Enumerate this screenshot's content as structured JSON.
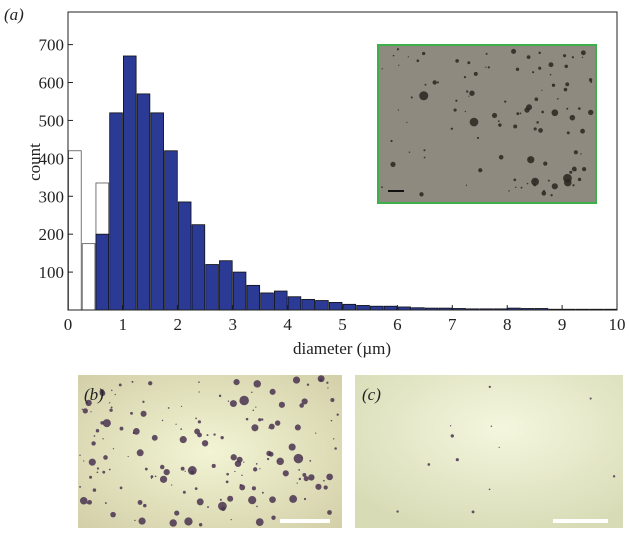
{
  "chart_data": {
    "type": "histogram",
    "panel_label": "(a)",
    "ylabel": "count",
    "xlabel": "diameter (µm)",
    "bins": [
      0,
      0.25,
      0.5,
      0.75,
      1,
      1.25,
      1.5,
      1.75,
      2,
      2.25,
      2.5,
      2.75,
      3,
      3.25,
      3.5,
      3.75,
      4,
      4.25,
      4.5,
      4.75,
      5,
      5.25,
      5.5,
      5.75,
      6,
      6.25,
      6.5,
      6.75,
      7,
      7.25,
      7.5,
      7.75,
      8,
      8.25,
      8.5,
      8.75,
      9,
      9.25,
      9.5,
      9.75,
      10
    ],
    "series": [
      {
        "color": "#ffffff",
        "values": [
          420,
          175,
          335,
          null,
          null,
          null,
          null,
          null,
          null,
          null,
          null,
          null,
          null,
          null,
          null,
          null,
          null,
          null,
          null,
          null,
          null,
          null,
          null,
          null,
          null,
          null,
          null,
          null,
          null,
          null,
          null,
          null,
          null,
          null,
          null,
          null,
          null,
          null,
          null,
          null
        ]
      },
      {
        "color": "#2b3a94",
        "values": [
          null,
          null,
          200,
          520,
          670,
          570,
          520,
          420,
          285,
          225,
          120,
          130,
          100,
          65,
          45,
          50,
          35,
          28,
          25,
          20,
          15,
          12,
          10,
          10,
          8,
          6,
          5,
          5,
          4,
          3,
          3,
          3,
          5,
          4,
          4,
          2,
          2,
          2,
          2,
          2
        ]
      }
    ],
    "xlim": [
      0,
      10
    ],
    "xticks": [
      0,
      1,
      2,
      3,
      4,
      5,
      6,
      7,
      8,
      9,
      10
    ],
    "ylim": [
      0,
      786
    ],
    "yticks": [
      100,
      200,
      300,
      400,
      500,
      600,
      700
    ]
  },
  "panels": [
    {
      "label": "(b)"
    },
    {
      "label": "(c)"
    }
  ]
}
